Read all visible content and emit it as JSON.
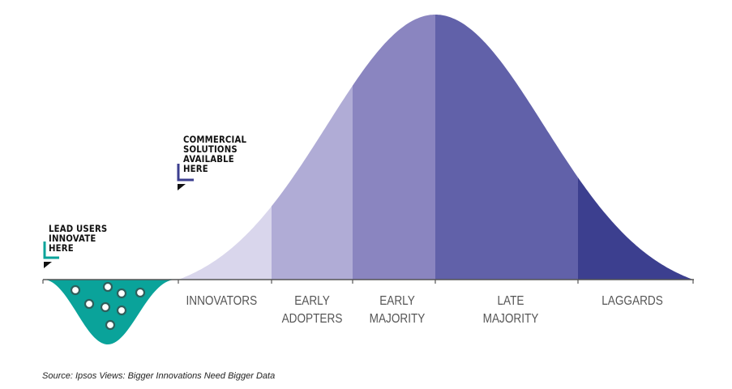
{
  "segments": [
    {
      "label": "INNOVATORS",
      "color": "#d9d6ec"
    },
    {
      "label": "EARLY ADOPTERS",
      "color": "#b0acd6"
    },
    {
      "label": "EARLY MAJORITY",
      "color": "#8a85c0"
    },
    {
      "label": "LATE MAJORITY",
      "color": "#6161a9"
    },
    {
      "label": "LAGGARDS",
      "color": "#3c3f8f"
    }
  ],
  "annotations": {
    "lead_users": "LEAD USERS INNOVATE HERE",
    "commercial": "COMMERCIAL SOLUTIONS AVAILABLE HERE"
  },
  "colors": {
    "teal": "#0aa39a",
    "navy": "#3c3f8f",
    "axis": "#555555"
  },
  "source": "Source: Ipsos Views: Bigger Innovations Need Bigger Data"
}
